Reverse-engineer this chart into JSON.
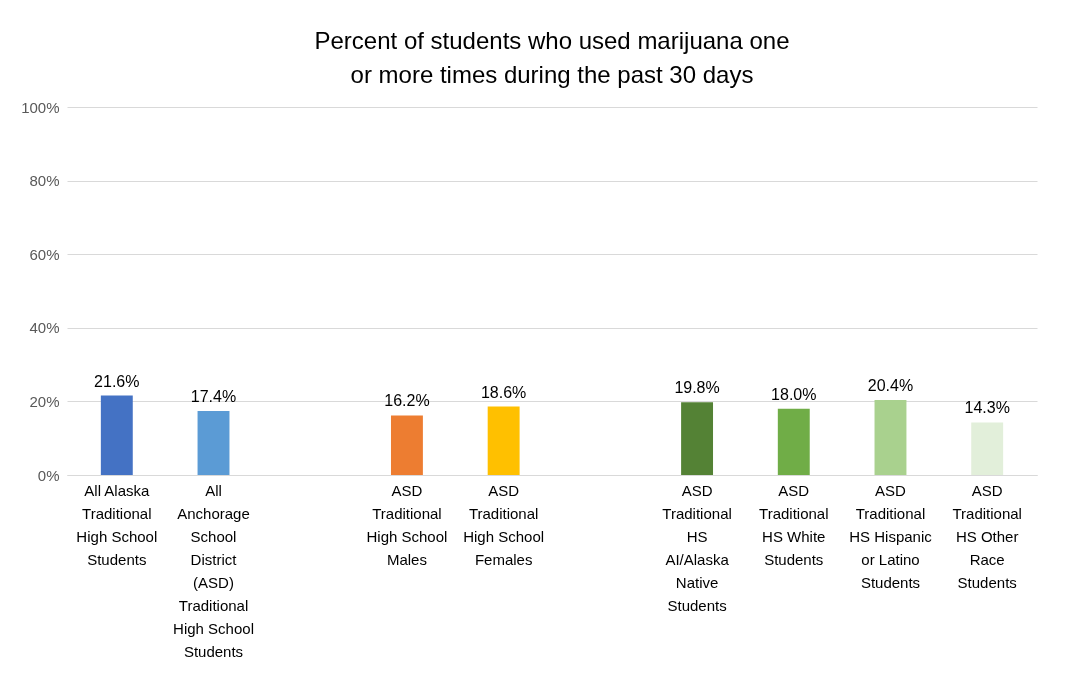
{
  "chart_data": {
    "type": "bar",
    "title": "Percent of students who used marijuana one or more times during the past 30 days",
    "categories": [
      "All Alaska Traditional High School Students",
      "All Anchorage School District (ASD) Traditional High School Students",
      null,
      "ASD Traditional High School Males",
      "ASD Traditional High School Females",
      null,
      "ASD Traditional HS AI/Alaska Native Students",
      "ASD Traditional HS White Students",
      "ASD Traditional HS Hispanic or Latino Students",
      "ASD Traditional HS Other Race Students"
    ],
    "values": [
      21.6,
      17.4,
      null,
      16.2,
      18.6,
      null,
      19.8,
      18.0,
      20.4,
      14.3
    ],
    "colors": [
      "#4472c4",
      "#5b9bd5",
      "#ffffff",
      "#ed7d31",
      "#ffc000",
      "#ffffff",
      "#548235",
      "#70ad47",
      "#a9d18e",
      "#e2efda"
    ],
    "value_labels": [
      "21.6%",
      "17.4%",
      null,
      "16.2%",
      "18.6%",
      null,
      "19.8%",
      "18.0%",
      "20.4%",
      "14.3%"
    ],
    "ylim": [
      0,
      100
    ],
    "yticks": [
      {
        "value": 0,
        "label": "0%"
      },
      {
        "value": 20,
        "label": "20%"
      },
      {
        "value": 40,
        "label": "40%"
      },
      {
        "value": 60,
        "label": "60%"
      },
      {
        "value": 80,
        "label": "80%"
      },
      {
        "value": 100,
        "label": "100%"
      }
    ],
    "grid": "y",
    "legend": false
  }
}
